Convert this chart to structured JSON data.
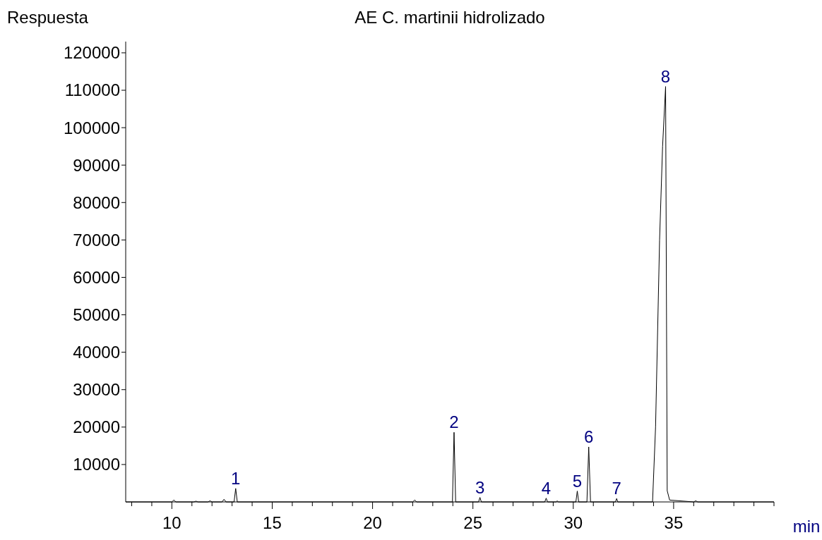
{
  "chart_data": {
    "type": "line",
    "title": "AE C. martinii hidrolizado",
    "ylabel": "Respuesta",
    "xlabel": "min",
    "xlim": [
      7.7,
      40
    ],
    "ylim": [
      0,
      123000
    ],
    "xticks": [
      {
        "value": 8,
        "label": null
      },
      {
        "value": 9,
        "label": null
      },
      10,
      {
        "value": 11,
        "label": null
      },
      {
        "value": 12,
        "label": null
      },
      {
        "value": 13,
        "label": null
      },
      {
        "value": 14,
        "label": null
      },
      15,
      {
        "value": 16,
        "label": null
      },
      {
        "value": 17,
        "label": null
      },
      {
        "value": 18,
        "label": null
      },
      {
        "value": 19,
        "label": null
      },
      20,
      {
        "value": 21,
        "label": null
      },
      {
        "value": 22,
        "label": null
      },
      {
        "value": 23,
        "label": null
      },
      {
        "value": 24,
        "label": null
      },
      25,
      {
        "value": 26,
        "label": null
      },
      {
        "value": 27,
        "label": null
      },
      {
        "value": 28,
        "label": null
      },
      {
        "value": 29,
        "label": null
      },
      30,
      {
        "value": 31,
        "label": null
      },
      {
        "value": 32,
        "label": null
      },
      {
        "value": 33,
        "label": null
      },
      {
        "value": 34,
        "label": null
      },
      35,
      {
        "value": 36,
        "label": null
      },
      {
        "value": 37,
        "label": null
      },
      {
        "value": 38,
        "label": null
      },
      {
        "value": 39,
        "label": null
      },
      {
        "value": 40,
        "label": null
      }
    ],
    "yticks": [
      10000,
      20000,
      30000,
      40000,
      50000,
      60000,
      70000,
      80000,
      90000,
      100000,
      110000,
      120000
    ],
    "grid": false,
    "marker": "none",
    "line_style": "solid",
    "series": [
      {
        "color": "#000000",
        "x": [
          7.7,
          10.0,
          10.1,
          10.2,
          11.1,
          11.2,
          11.3,
          11.8,
          11.9,
          12.0,
          12.5,
          12.6,
          12.7,
          13.1,
          13.18,
          13.26,
          22.0,
          22.1,
          22.2,
          23.98,
          24.06,
          24.14,
          25.28,
          25.35,
          25.42,
          28.58,
          28.65,
          28.72,
          29.15,
          29.2,
          29.25,
          30.13,
          30.2,
          30.27,
          30.68,
          30.77,
          30.86,
          32.1,
          32.16,
          32.22,
          33.95,
          34.1,
          34.3,
          34.45,
          34.6,
          34.68,
          34.8,
          36.0,
          36.1,
          36.2,
          40
        ],
        "values": [
          0,
          0,
          500,
          0,
          0,
          200,
          0,
          0,
          300,
          0,
          0,
          700,
          0,
          0,
          3600,
          0,
          0,
          500,
          0,
          0,
          18600,
          0,
          0,
          1200,
          0,
          0,
          1000,
          0,
          0,
          300,
          0,
          0,
          2900,
          0,
          0,
          14700,
          0,
          0,
          900,
          0,
          0,
          20000,
          70000,
          95000,
          111000,
          3000,
          500,
          0,
          300,
          0,
          0
        ]
      }
    ],
    "annotations": [
      {
        "text": "1",
        "x": 13.18,
        "y": 3600
      },
      {
        "text": "2",
        "x": 24.06,
        "y": 18600
      },
      {
        "text": "3",
        "x": 25.35,
        "y": 1200
      },
      {
        "text": "4",
        "x": 28.65,
        "y": 1000
      },
      {
        "text": "5",
        "x": 30.2,
        "y": 2900
      },
      {
        "text": "6",
        "x": 30.77,
        "y": 14700
      },
      {
        "text": "7",
        "x": 32.16,
        "y": 900
      },
      {
        "text": "8",
        "x": 34.6,
        "y": 111000
      }
    ]
  }
}
